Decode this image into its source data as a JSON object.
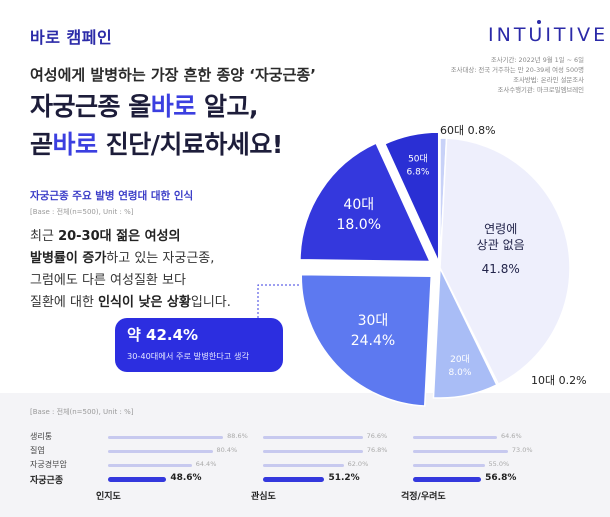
{
  "header": {
    "campaign_title": "바로 캠페인",
    "brand_logo": "INTUITIVE"
  },
  "subtitle": "여성에게 발병하는 가장 흔한 종양 ‘자궁근종’",
  "headline": {
    "line1_a": "자궁근종 올",
    "line1_hl": "바로",
    "line1_b": " 알고,",
    "line2_a": "곧",
    "line2_hl": "바로",
    "line2_b": " 진단/치료하세요!"
  },
  "survey_info": [
    "조사기간: 2022년 9월 1일 ~ 6일",
    "조사대상: 전국 거주하는 만 20-39세 여성 500명",
    "조사방법: 온라인 설문조사",
    "조사수행기관: 마크로밀엠브레인"
  ],
  "section1": {
    "title": "자궁근종 주요 발병 연령대 대한 인식",
    "base": "[Base : 전체(n=500), Unit : %]",
    "body_line1_a": "최근 ",
    "body_line1_b": "20-30대 젊은 여성의",
    "body_line2_a": "발병률이 증가",
    "body_line2_b": "하고 있는 자궁근종,",
    "body_line3": "그럼에도 다른 여성질환 보다",
    "body_line4_a": "질환에 대한 ",
    "body_line4_b": "인식이 낮은 상황",
    "body_line4_c": "입니다.",
    "callout_big": "약 42.4%",
    "callout_small": "30-40대에서 주로 발병한다고 생각"
  },
  "colors": {
    "brand": "#2b2aa8",
    "accent": "#3b3fe0",
    "pie_40": "#3438dd",
    "pie_30": "#5d79f0",
    "pie_50": "#2a2fd4",
    "pie_20": "#a9bdf6",
    "pie_10": "#c8d2f8",
    "pie_none": "#eeeffc"
  },
  "chart_data": [
    {
      "type": "pie",
      "title": "자궁근종 주요 발병 연령대 대한 인식",
      "base": "[Base : 전체(n=500), Unit : %]",
      "slices": [
        {
          "label": "60대",
          "value": 0.8,
          "value_label": "0.8%"
        },
        {
          "label": "연령에 상관 없음",
          "label_line1": "연령에",
          "label_line2": "상관 없음",
          "value": 41.8,
          "value_label": "41.8%"
        },
        {
          "label": "10대",
          "value": 0.2,
          "value_label": "0.2%"
        },
        {
          "label": "20대",
          "value": 8.0,
          "value_label": "8.0%"
        },
        {
          "label": "30대",
          "value": 24.4,
          "value_label": "24.4%"
        },
        {
          "label": "40대",
          "value": 18.0,
          "value_label": "18.0%"
        },
        {
          "label": "50대",
          "value": 6.8,
          "value_label": "6.8%"
        }
      ]
    },
    {
      "type": "bar",
      "base": "[Base : 전체(n=500), Unit : %]",
      "categories": [
        "생리통",
        "질염",
        "자궁경부암",
        "자궁근종"
      ],
      "series": [
        {
          "name": "인지도",
          "values": [
            88.6,
            80.4,
            64.4,
            48.6
          ],
          "value_labels": [
            "88.6%",
            "80.4%",
            "64.4%",
            "48.6%"
          ]
        },
        {
          "name": "관심도",
          "values": [
            76.6,
            76.8,
            62.0,
            51.2
          ],
          "value_labels": [
            "76.6%",
            "76.8%",
            "62.0%",
            "51.2%"
          ]
        },
        {
          "name": "걱정/우려도",
          "values": [
            64.6,
            73.0,
            55.0,
            56.8
          ],
          "value_labels": [
            "64.6%",
            "73.0%",
            "55.0%",
            "56.8%"
          ]
        }
      ],
      "xlim": [
        0,
        100
      ]
    }
  ]
}
